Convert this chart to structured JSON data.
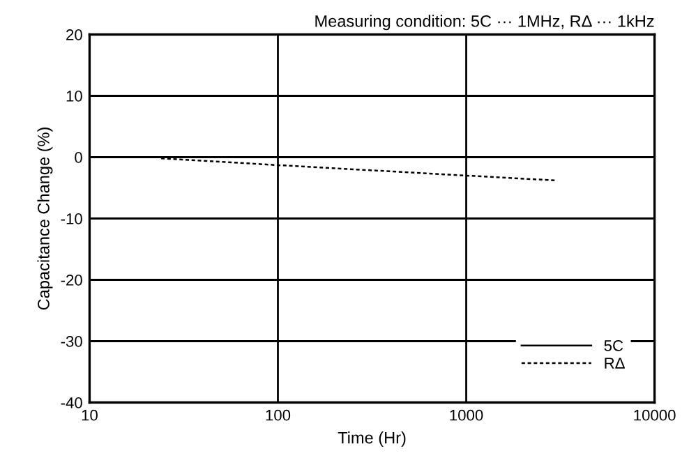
{
  "chart_data": {
    "type": "line",
    "title": "Measuring condition: 5C ··· 1MHz, RΔ ··· 1kHz",
    "xlabel": "Time (Hr)",
    "ylabel": "Capacitance Change (%)",
    "log": "x",
    "x": [
      24,
      100,
      1000,
      3000
    ],
    "series": [
      {
        "name": "5C",
        "color": "#000000",
        "line_style": "solid",
        "values": [
          null,
          null,
          null,
          null
        ]
      },
      {
        "name": "RΔ",
        "color": "#000000",
        "line_style": "dashed",
        "values": [
          -0.2,
          -1.3,
          -3.0,
          -3.8
        ]
      }
    ],
    "xlim": [
      10,
      10000
    ],
    "xticks": [
      10,
      100,
      1000,
      10000
    ],
    "ylim": [
      -40,
      20
    ],
    "yticks": [
      -40,
      -30,
      -20,
      -10,
      0,
      10,
      20
    ],
    "grid": true,
    "legend": "bottom right",
    "marker": "none"
  }
}
